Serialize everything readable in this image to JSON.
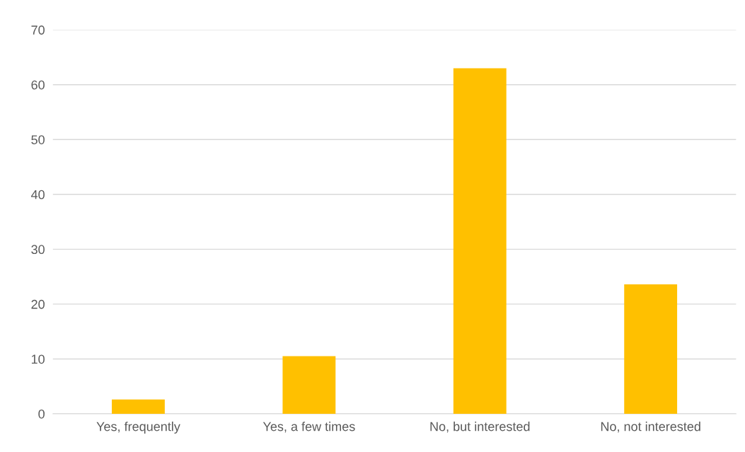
{
  "chart_data": {
    "type": "bar",
    "categories": [
      "Yes, frequently",
      "Yes, a few times",
      "No, but interested",
      "No, not interested"
    ],
    "values": [
      2.6,
      10.5,
      63.0,
      23.6
    ],
    "color": "#ffc000",
    "ylim": [
      0,
      70
    ],
    "yticks": [
      0,
      10,
      20,
      30,
      40,
      50,
      60,
      70
    ],
    "grid": "y",
    "legend": false
  }
}
